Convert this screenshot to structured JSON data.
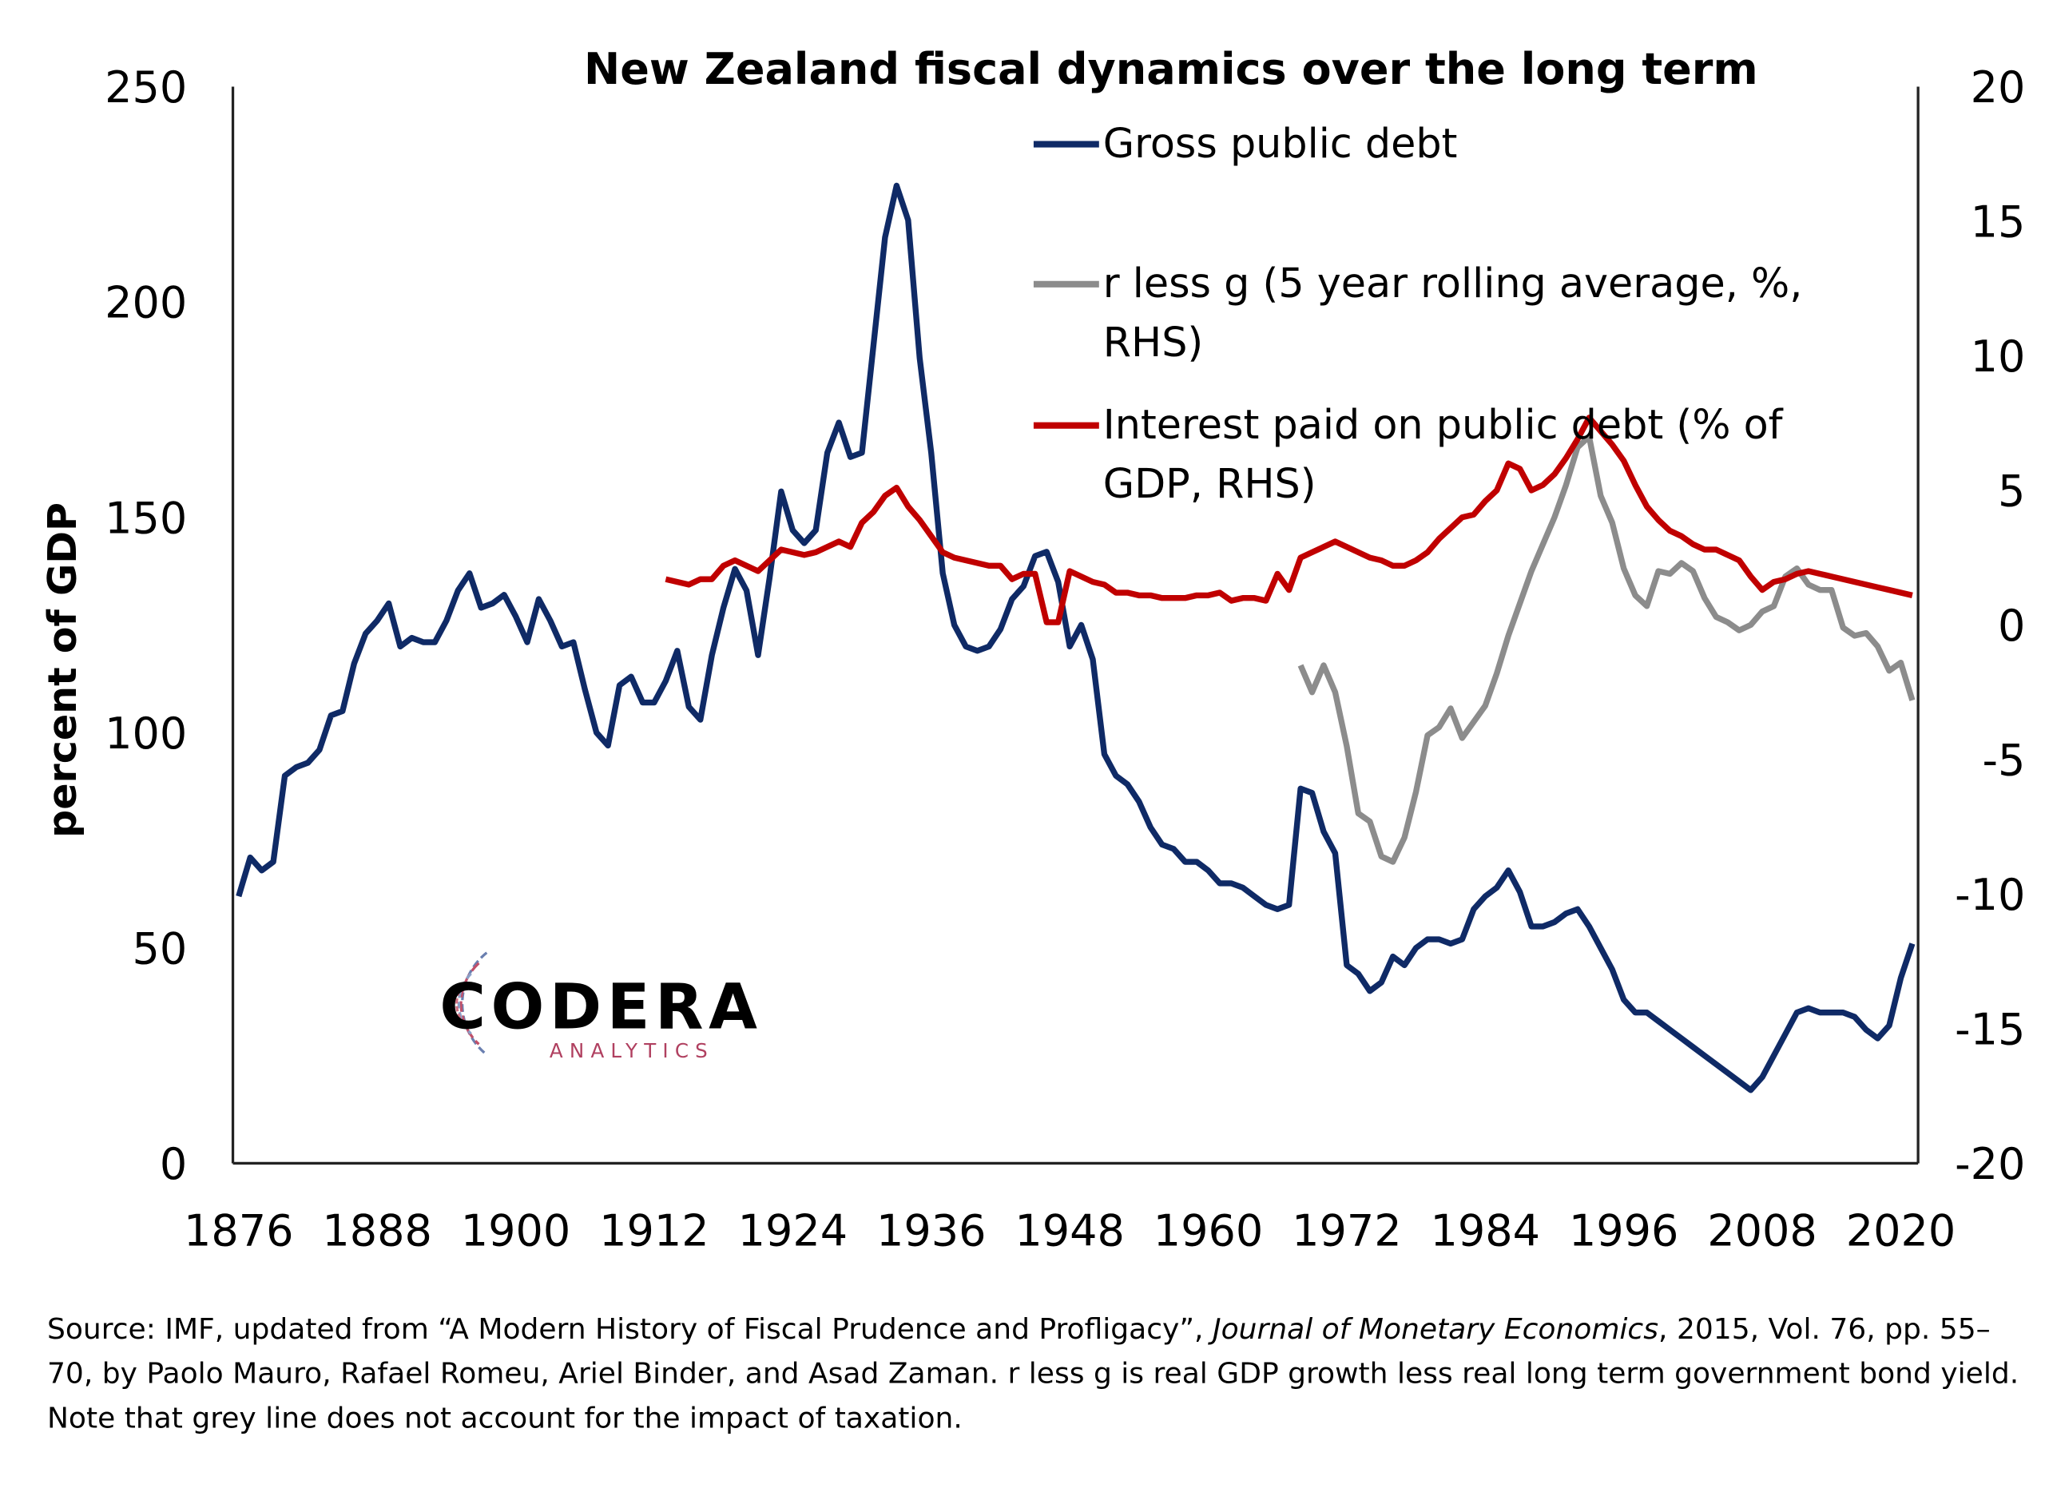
{
  "chart_data": {
    "type": "line",
    "title": "New Zealand fiscal dynamics over the long term",
    "y_label": "percent of GDP",
    "xlim": [
      1875.5,
      2021.5
    ],
    "xticks": [
      1876,
      1888,
      1900,
      1912,
      1924,
      1936,
      1948,
      1960,
      1972,
      1984,
      1996,
      2008,
      2020
    ],
    "ylim": [
      0,
      250
    ],
    "yticks": [
      0,
      50,
      100,
      150,
      200,
      250
    ],
    "y2lim": [
      -20,
      20
    ],
    "y2ticks": [
      -20,
      -15,
      -10,
      -5,
      0,
      5,
      10,
      15,
      20
    ],
    "grid": false,
    "x": [
      1876,
      1877,
      1878,
      1879,
      1880,
      1881,
      1882,
      1883,
      1884,
      1885,
      1886,
      1887,
      1888,
      1889,
      1890,
      1891,
      1892,
      1893,
      1894,
      1895,
      1896,
      1897,
      1898,
      1899,
      1900,
      1901,
      1902,
      1903,
      1904,
      1905,
      1906,
      1907,
      1908,
      1909,
      1910,
      1911,
      1912,
      1913,
      1914,
      1915,
      1916,
      1917,
      1918,
      1919,
      1920,
      1921,
      1922,
      1923,
      1924,
      1925,
      1926,
      1927,
      1928,
      1929,
      1930,
      1931,
      1932,
      1933,
      1934,
      1935,
      1936,
      1937,
      1938,
      1939,
      1940,
      1941,
      1942,
      1943,
      1944,
      1945,
      1946,
      1947,
      1948,
      1949,
      1950,
      1951,
      1952,
      1953,
      1954,
      1955,
      1956,
      1957,
      1958,
      1959,
      1960,
      1961,
      1962,
      1963,
      1964,
      1965,
      1966,
      1967,
      1968,
      1969,
      1970,
      1971,
      1972,
      1973,
      1974,
      1975,
      1976,
      1977,
      1978,
      1979,
      1980,
      1981,
      1982,
      1983,
      1984,
      1985,
      1986,
      1987,
      1988,
      1989,
      1990,
      1991,
      1992,
      1993,
      1994,
      1995,
      1996,
      1997,
      1998,
      1999,
      2000,
      2001,
      2002,
      2003,
      2004,
      2005,
      2006,
      2007,
      2008,
      2009,
      2010,
      2011,
      2012,
      2013,
      2014,
      2015,
      2016,
      2017,
      2018,
      2019,
      2020,
      2021
    ],
    "series": [
      {
        "name": "Gross public debt",
        "color": "#0f2a66",
        "values": [
          62,
          71,
          68,
          70,
          90,
          92,
          93,
          96,
          104,
          105,
          116,
          123,
          126,
          130,
          120,
          122,
          121,
          121,
          126,
          133,
          137,
          129,
          130,
          132,
          127,
          121,
          131,
          126,
          120,
          121,
          110,
          100,
          97,
          111,
          113,
          107,
          107,
          112,
          119,
          106,
          103,
          118,
          129,
          138,
          133,
          118,
          136,
          156,
          147,
          144,
          147,
          165,
          172,
          164,
          165,
          190,
          215,
          227,
          219,
          187,
          165,
          137,
          125,
          120,
          119,
          120,
          124,
          131,
          134,
          141,
          142,
          135,
          120,
          125,
          117,
          95,
          90,
          88,
          84,
          78,
          74,
          73,
          70,
          70,
          68,
          65,
          65,
          64,
          62,
          60,
          59,
          60,
          87,
          86,
          77,
          72,
          46,
          44,
          40,
          42,
          48,
          46,
          50,
          52,
          52,
          51,
          52,
          59,
          62,
          64,
          68,
          63,
          55,
          55,
          56,
          58,
          59,
          55,
          50,
          45,
          38,
          35,
          35,
          33,
          31,
          29,
          27,
          25,
          23,
          21,
          19,
          17,
          20,
          25,
          30,
          35,
          36,
          35,
          35,
          35,
          34,
          31,
          29,
          32,
          43,
          51
        ]
      },
      {
        "name": "r less g (5 year rolling average, %, RHS)",
        "color": "#8c8c8c",
        "axis": "y2",
        "values": [
          null,
          null,
          null,
          null,
          null,
          null,
          null,
          null,
          null,
          null,
          null,
          null,
          null,
          null,
          null,
          null,
          null,
          null,
          null,
          null,
          null,
          null,
          null,
          null,
          null,
          null,
          null,
          null,
          null,
          null,
          null,
          null,
          null,
          null,
          null,
          null,
          null,
          null,
          null,
          null,
          null,
          null,
          null,
          null,
          null,
          null,
          null,
          null,
          null,
          null,
          null,
          null,
          null,
          null,
          null,
          null,
          null,
          null,
          null,
          null,
          null,
          null,
          null,
          null,
          null,
          null,
          null,
          null,
          null,
          null,
          null,
          null,
          null,
          null,
          null,
          null,
          null,
          null,
          null,
          null,
          null,
          null,
          null,
          null,
          null,
          null,
          null,
          null,
          null,
          null,
          null,
          null,
          -1.5,
          -2.5,
          -1.5,
          -2.5,
          -4.5,
          -7.0,
          -7.3,
          -8.6,
          -8.8,
          -7.9,
          -6.2,
          -4.1,
          -3.8,
          -3.1,
          -4.2,
          -3.6,
          -3.0,
          -1.8,
          -0.4,
          0.8,
          2.0,
          3.0,
          4.0,
          5.2,
          6.6,
          7.0,
          4.8,
          3.8,
          2.1,
          1.1,
          0.7,
          2.0,
          1.9,
          2.3,
          2.0,
          1.0,
          0.3,
          0.1,
          -0.2,
          0,
          0.5,
          0.7,
          1.8,
          2.1,
          1.5,
          1.3,
          1.3,
          -0.1,
          -0.4,
          -0.3,
          -0.8,
          -1.7,
          -1.4,
          -2.8
        ]
      },
      {
        "name": "Interest paid on public debt (% of GDP, RHS)",
        "color": "#c00000",
        "axis": "y2",
        "values": [
          null,
          null,
          null,
          null,
          null,
          null,
          null,
          null,
          null,
          null,
          null,
          null,
          null,
          null,
          null,
          null,
          null,
          null,
          null,
          null,
          null,
          null,
          null,
          null,
          null,
          null,
          null,
          null,
          null,
          null,
          null,
          null,
          null,
          null,
          null,
          null,
          null,
          1.7,
          1.6,
          1.5,
          1.7,
          1.7,
          2.2,
          2.4,
          2.2,
          2.0,
          2.4,
          2.8,
          2.7,
          2.6,
          2.7,
          2.9,
          3.1,
          2.9,
          3.8,
          4.2,
          4.8,
          5.1,
          4.4,
          3.9,
          3.3,
          2.7,
          2.5,
          2.4,
          2.3,
          2.2,
          2.2,
          1.7,
          1.9,
          1.9,
          0.1,
          0.1,
          2.0,
          1.8,
          1.6,
          1.5,
          1.2,
          1.2,
          1.1,
          1.1,
          1.0,
          1.0,
          1.0,
          1.1,
          1.1,
          1.2,
          0.9,
          1.0,
          1.0,
          0.9,
          1.9,
          1.3,
          2.5,
          2.7,
          2.9,
          3.1,
          2.9,
          2.7,
          2.5,
          2.4,
          2.2,
          2.2,
          2.4,
          2.7,
          3.2,
          3.6,
          4.0,
          4.1,
          4.6,
          5.0,
          6.0,
          5.8,
          5.0,
          5.2,
          5.6,
          6.2,
          6.9,
          7.7,
          7.2,
          6.7,
          6.1,
          5.2,
          4.4,
          3.9,
          3.5,
          3.3,
          3.0,
          2.8,
          2.8,
          2.6,
          2.4,
          1.8,
          1.3,
          1.6,
          1.7,
          1.9,
          2.0,
          1.9,
          1.8,
          1.7,
          1.6,
          1.5,
          1.4,
          1.3,
          1.2,
          1.1
        ]
      }
    ],
    "logo": {
      "name": "CODERA",
      "tagline": "ANALYTICS"
    },
    "source": [
      "Source: IMF, updated from “A Modern History of Fiscal Prudence and Profligacy”, ",
      "Journal of Monetary Economics",
      ", 2015, Vol. 76, pp. 55–70, by Paolo Mauro, Rafael Romeu, Ariel Binder, and Asad Zaman. r less g is real GDP growth less real long term government bond yield. Note that grey line does not account for the impact of taxation."
    ]
  }
}
